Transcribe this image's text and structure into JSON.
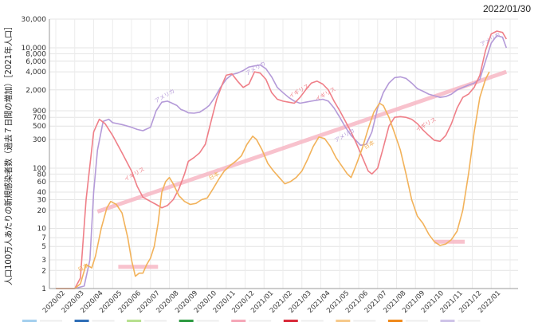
{
  "header": {
    "date": "2022/01/30"
  },
  "chart_data": {
    "type": "line",
    "title": "",
    "ylabel": "人口100万人あたりの新規感染者数（過去７日間の増加）［2021年人口］",
    "yscale": "log",
    "ylim": [
      1,
      30000
    ],
    "ytick_labels": [
      "1",
      "2",
      "3",
      "5",
      "7",
      "10",
      "20",
      "30",
      "40",
      "60",
      "80",
      "100",
      "300",
      "500",
      "700",
      "900",
      "2,000",
      "4,000",
      "6,000",
      "8,000",
      "10,000",
      "30,000"
    ],
    "ytick_values": [
      1,
      2,
      3,
      5,
      7,
      10,
      20,
      30,
      40,
      60,
      80,
      100,
      300,
      500,
      700,
      900,
      2000,
      4000,
      6000,
      8000,
      10000,
      30000
    ],
    "x_categories": [
      "2020/02",
      "2020/03",
      "2020/04",
      "2020/05",
      "2020/06",
      "2020/07",
      "2020/08",
      "2020/09",
      "2020/10",
      "2020/11",
      "2020/12",
      "2021/01",
      "2021/02",
      "2021/03",
      "2021/04",
      "2021/05",
      "2021/06",
      "2021/07",
      "2021/08",
      "2021/09",
      "2021/10",
      "2021/11",
      "2021/12",
      "2022/01"
    ],
    "grid": true,
    "series": [
      {
        "name": "アメリカ",
        "color": "#b49ad8",
        "points": [
          [
            0.0,
            1
          ],
          [
            0.4,
            1
          ],
          [
            0.8,
            1
          ],
          [
            1.0,
            1
          ],
          [
            1.5,
            1.1
          ],
          [
            1.8,
            3
          ],
          [
            2.0,
            40
          ],
          [
            2.2,
            200
          ],
          [
            2.5,
            600
          ],
          [
            2.8,
            650
          ],
          [
            3.0,
            570
          ],
          [
            3.5,
            530
          ],
          [
            4.0,
            480
          ],
          [
            4.3,
            440
          ],
          [
            4.6,
            420
          ],
          [
            5.0,
            480
          ],
          [
            5.3,
            900
          ],
          [
            5.6,
            1250
          ],
          [
            5.9,
            1300
          ],
          [
            6.1,
            1220
          ],
          [
            6.4,
            1100
          ],
          [
            6.6,
            950
          ],
          [
            6.8,
            900
          ],
          [
            7.0,
            830
          ],
          [
            7.3,
            820
          ],
          [
            7.6,
            850
          ],
          [
            7.9,
            980
          ],
          [
            8.1,
            1100
          ],
          [
            8.4,
            1500
          ],
          [
            8.7,
            2200
          ],
          [
            9.0,
            3000
          ],
          [
            9.3,
            3600
          ],
          [
            9.6,
            3800
          ],
          [
            9.9,
            4200
          ],
          [
            10.2,
            4800
          ],
          [
            10.5,
            5000
          ],
          [
            10.8,
            5200
          ],
          [
            11.1,
            4500
          ],
          [
            11.4,
            3300
          ],
          [
            11.7,
            2200
          ],
          [
            12.0,
            1800
          ],
          [
            12.3,
            1500
          ],
          [
            12.6,
            1300
          ],
          [
            12.9,
            1200
          ],
          [
            13.2,
            1250
          ],
          [
            13.5,
            1300
          ],
          [
            13.8,
            1350
          ],
          [
            14.1,
            1400
          ],
          [
            14.4,
            1300
          ],
          [
            14.7,
            1000
          ],
          [
            15.0,
            700
          ],
          [
            15.3,
            480
          ],
          [
            15.6,
            350
          ],
          [
            15.9,
            280
          ],
          [
            16.1,
            240
          ],
          [
            16.4,
            250
          ],
          [
            16.7,
            400
          ],
          [
            17.0,
            1000
          ],
          [
            17.3,
            1800
          ],
          [
            17.6,
            2600
          ],
          [
            17.9,
            3200
          ],
          [
            18.2,
            3300
          ],
          [
            18.5,
            3100
          ],
          [
            18.8,
            2600
          ],
          [
            19.1,
            2100
          ],
          [
            19.4,
            1900
          ],
          [
            19.7,
            1700
          ],
          [
            20.0,
            1600
          ],
          [
            20.3,
            1500
          ],
          [
            20.6,
            1550
          ],
          [
            20.9,
            1700
          ],
          [
            21.2,
            2000
          ],
          [
            21.5,
            2200
          ],
          [
            21.8,
            2400
          ],
          [
            22.1,
            2600
          ],
          [
            22.4,
            3000
          ],
          [
            22.7,
            6000
          ],
          [
            23.0,
            12000
          ],
          [
            23.3,
            16000
          ],
          [
            23.6,
            15000
          ],
          [
            23.8,
            10000
          ]
        ]
      },
      {
        "name": "イギリス",
        "color": "#ef7f88",
        "points": [
          [
            0.0,
            1
          ],
          [
            0.4,
            1
          ],
          [
            0.8,
            1
          ],
          [
            1.0,
            1
          ],
          [
            1.3,
            1.5
          ],
          [
            1.6,
            30
          ],
          [
            2.0,
            400
          ],
          [
            2.3,
            650
          ],
          [
            2.6,
            550
          ],
          [
            3.0,
            350
          ],
          [
            3.5,
            180
          ],
          [
            4.0,
            90
          ],
          [
            4.3,
            50
          ],
          [
            4.6,
            33
          ],
          [
            5.0,
            28
          ],
          [
            5.3,
            25
          ],
          [
            5.6,
            22
          ],
          [
            5.9,
            24
          ],
          [
            6.2,
            30
          ],
          [
            6.5,
            45
          ],
          [
            6.8,
            80
          ],
          [
            7.0,
            130
          ],
          [
            7.3,
            150
          ],
          [
            7.6,
            180
          ],
          [
            7.9,
            250
          ],
          [
            8.2,
            600
          ],
          [
            8.5,
            1400
          ],
          [
            8.8,
            2500
          ],
          [
            9.0,
            3500
          ],
          [
            9.3,
            3700
          ],
          [
            9.6,
            2800
          ],
          [
            9.9,
            2200
          ],
          [
            10.2,
            2500
          ],
          [
            10.5,
            4000
          ],
          [
            10.8,
            3800
          ],
          [
            11.1,
            3000
          ],
          [
            11.4,
            1800
          ],
          [
            11.7,
            1400
          ],
          [
            12.0,
            1300
          ],
          [
            12.3,
            1250
          ],
          [
            12.6,
            1200
          ],
          [
            12.9,
            1500
          ],
          [
            13.2,
            2000
          ],
          [
            13.5,
            2600
          ],
          [
            13.8,
            2800
          ],
          [
            14.1,
            2500
          ],
          [
            14.4,
            2000
          ],
          [
            14.7,
            1300
          ],
          [
            15.0,
            900
          ],
          [
            15.3,
            600
          ],
          [
            15.6,
            400
          ],
          [
            15.9,
            250
          ],
          [
            16.2,
            150
          ],
          [
            16.5,
            90
          ],
          [
            16.7,
            80
          ],
          [
            17.0,
            100
          ],
          [
            17.3,
            220
          ],
          [
            17.6,
            500
          ],
          [
            17.9,
            700
          ],
          [
            18.2,
            720
          ],
          [
            18.5,
            700
          ],
          [
            18.8,
            650
          ],
          [
            19.1,
            550
          ],
          [
            19.4,
            430
          ],
          [
            19.7,
            350
          ],
          [
            20.0,
            290
          ],
          [
            20.3,
            280
          ],
          [
            20.6,
            350
          ],
          [
            20.9,
            550
          ],
          [
            21.2,
            1000
          ],
          [
            21.5,
            1500
          ],
          [
            21.8,
            1700
          ],
          [
            22.1,
            2200
          ],
          [
            22.4,
            3500
          ],
          [
            22.7,
            9000
          ],
          [
            23.0,
            17000
          ],
          [
            23.3,
            19000
          ],
          [
            23.6,
            18000
          ],
          [
            23.8,
            14000
          ]
        ]
      },
      {
        "name": "日本",
        "color": "#f2b25a",
        "points": [
          [
            0.0,
            1
          ],
          [
            0.6,
            1
          ],
          [
            1.0,
            1
          ],
          [
            1.3,
            1.2
          ],
          [
            1.6,
            2.5
          ],
          [
            1.9,
            2.2
          ],
          [
            2.1,
            3.5
          ],
          [
            2.4,
            10
          ],
          [
            2.7,
            22
          ],
          [
            2.9,
            28
          ],
          [
            3.2,
            25
          ],
          [
            3.5,
            18
          ],
          [
            3.8,
            7
          ],
          [
            4.0,
            3
          ],
          [
            4.2,
            1.6
          ],
          [
            4.4,
            1.8
          ],
          [
            4.6,
            1.8
          ],
          [
            4.8,
            2.5
          ],
          [
            5.0,
            3.2
          ],
          [
            5.2,
            5
          ],
          [
            5.4,
            12
          ],
          [
            5.6,
            40
          ],
          [
            5.8,
            60
          ],
          [
            6.0,
            70
          ],
          [
            6.2,
            55
          ],
          [
            6.5,
            35
          ],
          [
            6.8,
            28
          ],
          [
            7.1,
            25
          ],
          [
            7.4,
            26
          ],
          [
            7.7,
            30
          ],
          [
            8.0,
            32
          ],
          [
            8.3,
            45
          ],
          [
            8.6,
            65
          ],
          [
            8.9,
            90
          ],
          [
            9.2,
            110
          ],
          [
            9.5,
            130
          ],
          [
            9.8,
            160
          ],
          [
            10.1,
            250
          ],
          [
            10.4,
            340
          ],
          [
            10.6,
            300
          ],
          [
            10.9,
            200
          ],
          [
            11.2,
            120
          ],
          [
            11.5,
            90
          ],
          [
            11.8,
            70
          ],
          [
            12.1,
            55
          ],
          [
            12.4,
            60
          ],
          [
            12.7,
            70
          ],
          [
            13.0,
            90
          ],
          [
            13.3,
            140
          ],
          [
            13.6,
            230
          ],
          [
            13.9,
            330
          ],
          [
            14.2,
            310
          ],
          [
            14.5,
            230
          ],
          [
            14.8,
            150
          ],
          [
            15.1,
            110
          ],
          [
            15.4,
            80
          ],
          [
            15.6,
            70
          ],
          [
            15.9,
            120
          ],
          [
            16.2,
            220
          ],
          [
            16.5,
            450
          ],
          [
            16.8,
            850
          ],
          [
            17.1,
            1200
          ],
          [
            17.3,
            1100
          ],
          [
            17.6,
            700
          ],
          [
            17.9,
            380
          ],
          [
            18.2,
            200
          ],
          [
            18.5,
            80
          ],
          [
            18.8,
            30
          ],
          [
            19.1,
            16
          ],
          [
            19.4,
            12
          ],
          [
            19.7,
            8
          ],
          [
            20.0,
            6
          ],
          [
            20.3,
            5.2
          ],
          [
            20.6,
            5.5
          ],
          [
            20.9,
            6.5
          ],
          [
            21.2,
            9
          ],
          [
            21.5,
            20
          ],
          [
            21.8,
            80
          ],
          [
            22.1,
            400
          ],
          [
            22.4,
            1500
          ],
          [
            22.7,
            3000
          ],
          [
            22.9,
            4000
          ]
        ]
      }
    ],
    "series_labels": [
      {
        "text": "アメリカ",
        "series": 0,
        "x": 23.0,
        "y": 13000
      },
      {
        "text": "アメリカ",
        "series": 0,
        "x": 5.8,
        "y": 1500
      },
      {
        "text": "アメリカ",
        "series": 0,
        "x": 10.6,
        "y": 4300
      },
      {
        "text": "アメリカ",
        "series": 0,
        "x": 15.3,
        "y": 330
      },
      {
        "text": "イギリス",
        "series": 1,
        "x": 4.2,
        "y": 75
      },
      {
        "text": "イギリス",
        "series": 1,
        "x": 12.9,
        "y": 1800
      },
      {
        "text": "イギリス",
        "series": 1,
        "x": 14.3,
        "y": 1600
      },
      {
        "text": "イギリス",
        "series": 1,
        "x": 19.6,
        "y": 500
      },
      {
        "text": "日本",
        "series": 2,
        "x": 1.5,
        "y": 2.1
      },
      {
        "text": "日本",
        "series": 2,
        "x": 8.4,
        "y": 70
      },
      {
        "text": "日本",
        "series": 2,
        "x": 16.6,
        "y": 230
      }
    ],
    "reference_lines": [
      {
        "name": "trend",
        "color": "#f7b7c4",
        "points": [
          [
            2.2,
            19
          ],
          [
            23.8,
            4000
          ]
        ]
      },
      {
        "name": "low-2020",
        "color": "#f7b7c4",
        "points": [
          [
            3.3,
            2.3
          ],
          [
            5.4,
            2.3
          ]
        ]
      },
      {
        "name": "low-2021",
        "color": "#f7b7c4",
        "points": [
          [
            20.0,
            6
          ],
          [
            21.6,
            6
          ]
        ]
      }
    ],
    "legend_colors": [
      "#a5d0ee",
      "#2f6fb7",
      "#b7e08f",
      "#2e9a42",
      "#f5a8b8",
      "#d92b3a",
      "#f6ca8c",
      "#f08a1c",
      "#cfc4e8"
    ]
  }
}
